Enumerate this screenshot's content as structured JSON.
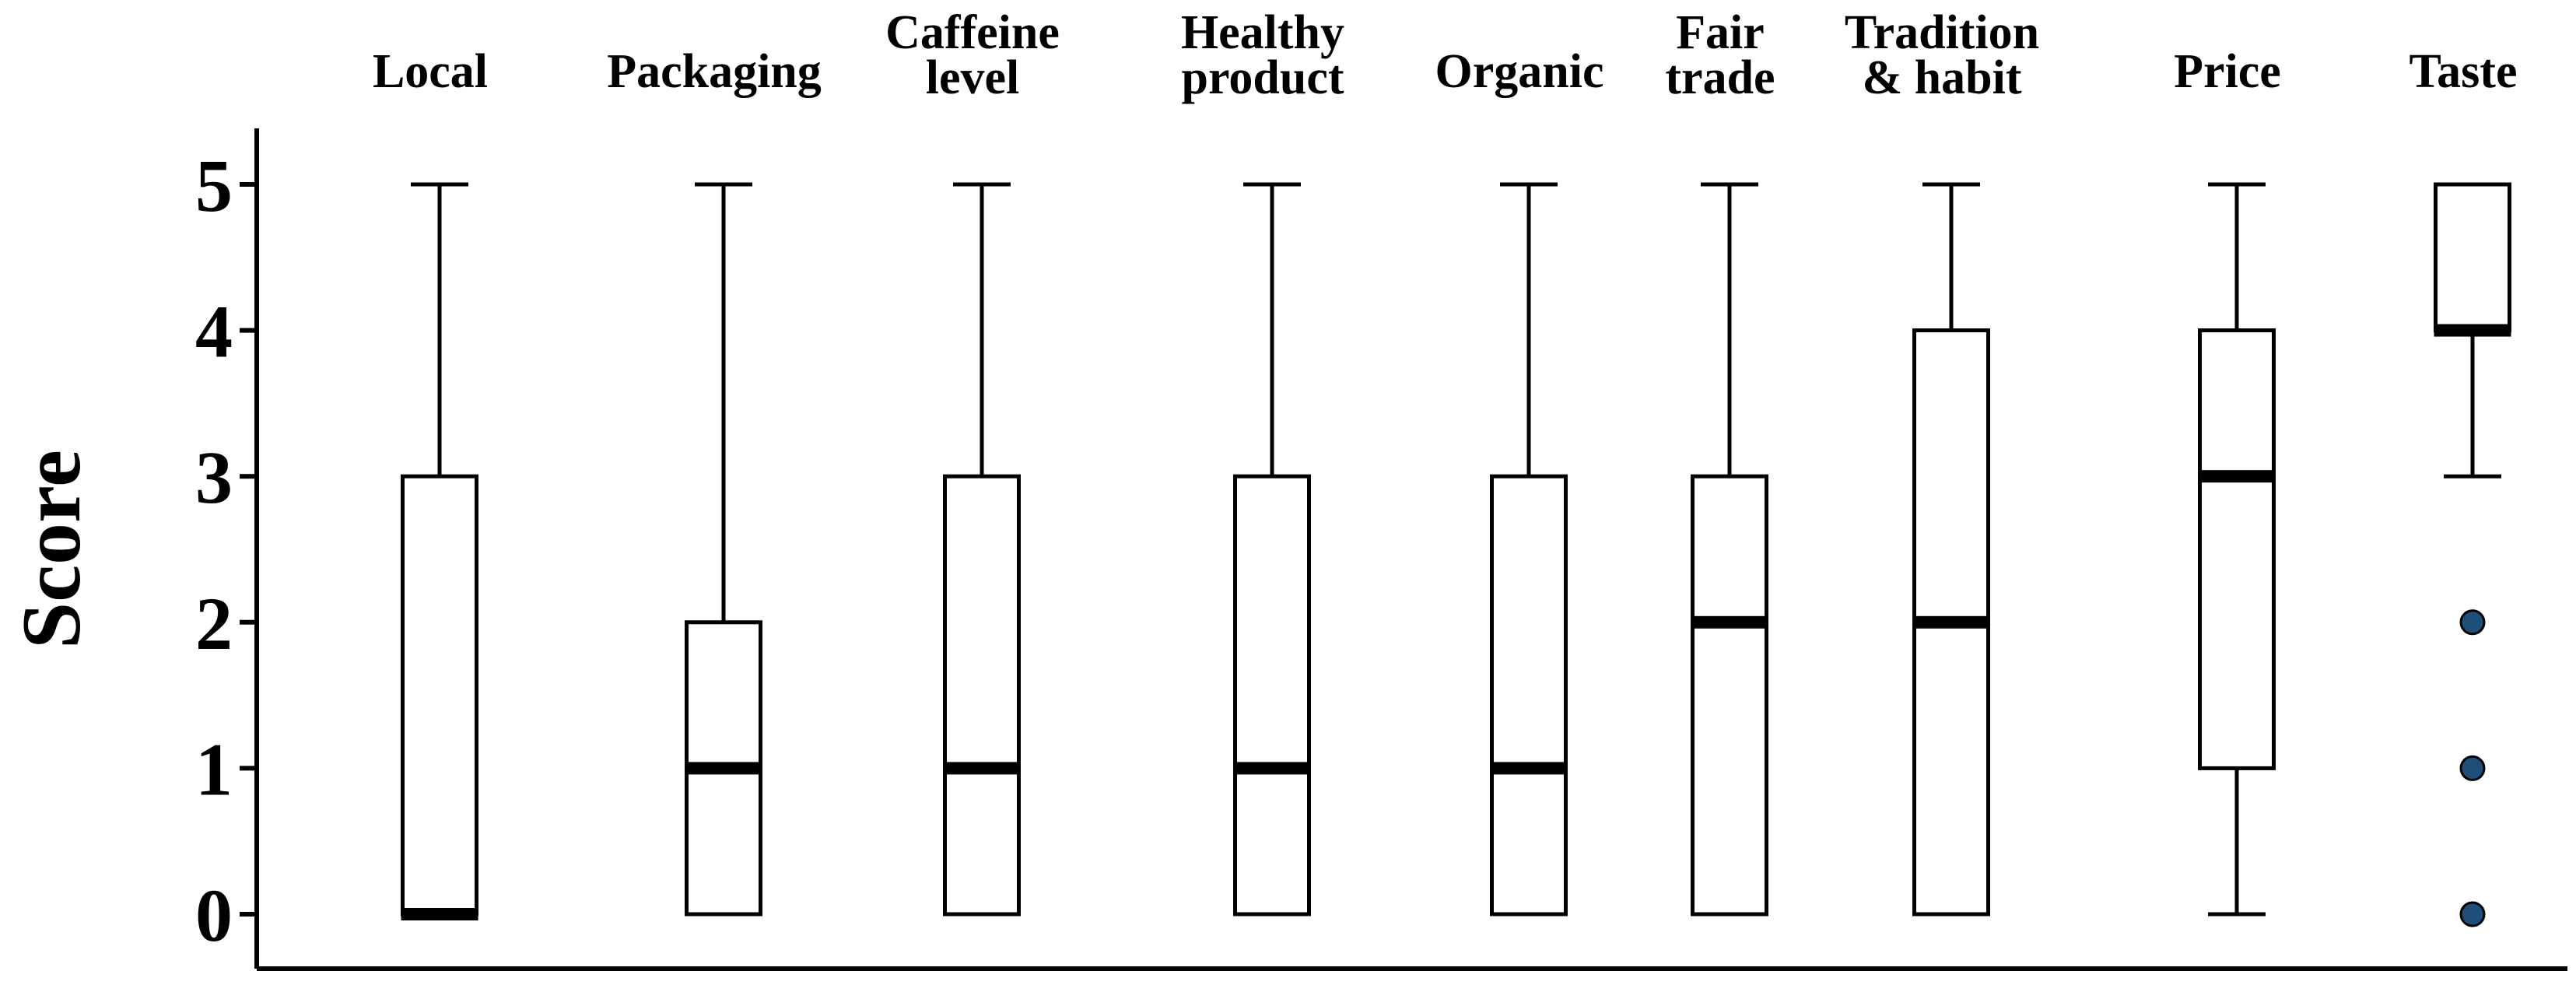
{
  "chart_data": {
    "type": "boxplot",
    "title": "",
    "xlabel": "",
    "ylabel": "Score",
    "ylim": [
      0,
      5
    ],
    "yticks": [
      0,
      1,
      2,
      3,
      4,
      5
    ],
    "grid": false,
    "legend": "none",
    "categories": [
      {
        "label": [
          "Local"
        ],
        "min": 0,
        "q1": 0,
        "median": 0,
        "q3": 3,
        "max": 5,
        "outliers": []
      },
      {
        "label": [
          "Packaging"
        ],
        "min": 0,
        "q1": 0,
        "median": 1,
        "q3": 2,
        "max": 5,
        "outliers": []
      },
      {
        "label": [
          "Caffeine",
          "level"
        ],
        "min": 0,
        "q1": 0,
        "median": 1,
        "q3": 3,
        "max": 5,
        "outliers": []
      },
      {
        "label": [
          "Healthy",
          "product"
        ],
        "min": 0,
        "q1": 0,
        "median": 1,
        "q3": 3,
        "max": 5,
        "outliers": []
      },
      {
        "label": [
          "Organic"
        ],
        "min": 0,
        "q1": 0,
        "median": 1,
        "q3": 3,
        "max": 5,
        "outliers": []
      },
      {
        "label": [
          "Fair",
          "trade"
        ],
        "min": 0,
        "q1": 0,
        "median": 2,
        "q3": 3,
        "max": 5,
        "outliers": []
      },
      {
        "label": [
          "Tradition",
          "& habit"
        ],
        "min": 0,
        "q1": 0,
        "median": 2,
        "q3": 4,
        "max": 5,
        "outliers": []
      },
      {
        "label": [
          "Price"
        ],
        "min": 0,
        "q1": 1,
        "median": 3,
        "q3": 4,
        "max": 5,
        "outliers": []
      },
      {
        "label": [
          "Taste"
        ],
        "min": 3,
        "q1": 4,
        "median": 4,
        "q3": 5,
        "max": 5,
        "outliers": [
          2,
          1,
          0
        ]
      }
    ],
    "colors": {
      "box_fill": "#ffffff",
      "stroke": "#000000",
      "outlier_fill": "#1f4e79"
    }
  }
}
